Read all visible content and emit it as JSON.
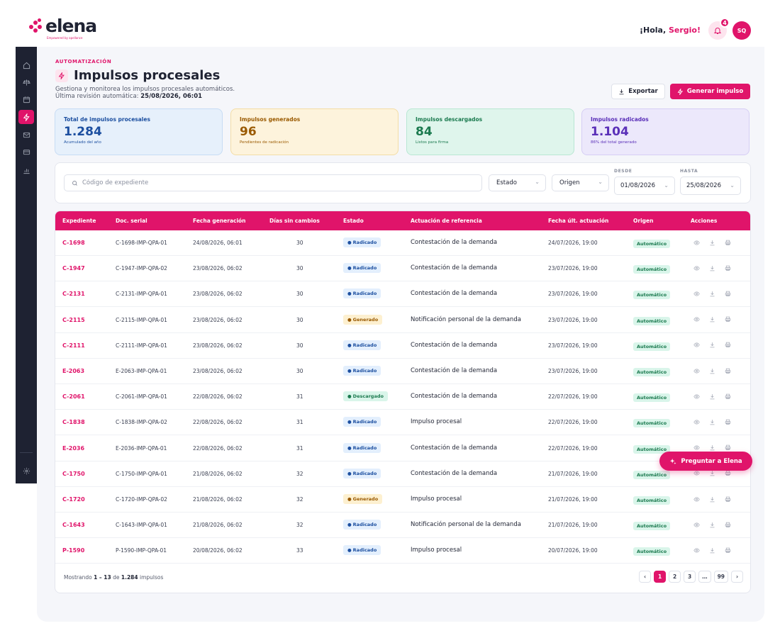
{
  "brand": {
    "name": "elena",
    "tagline": "Empowered by apellance"
  },
  "header": {
    "greeting_prefix": "¡Hola,",
    "user_name": "Sergio!",
    "notification_count": "4",
    "avatar_initials": "SQ"
  },
  "sidebar": {
    "items": [
      {
        "icon": "home-icon"
      },
      {
        "icon": "scale-icon"
      },
      {
        "icon": "calendar-icon"
      },
      {
        "icon": "bolt-icon",
        "active": true
      },
      {
        "icon": "mail-icon"
      },
      {
        "icon": "card-icon"
      },
      {
        "icon": "bar-chart-icon"
      }
    ],
    "bottom_icon": "settings-icon"
  },
  "page": {
    "section": "AUTOMATIZACIÓN",
    "title": "Impulsos procesales",
    "description": "Gestiona y monitorea los impulsos procesales automáticos.",
    "last_review_label": "Última revisión automática:",
    "last_review_value": "25/08/2026, 06:01",
    "export_label": "Exportar",
    "generate_label": "Generar impulso"
  },
  "stats": [
    {
      "label": "Total de impulsos procesales",
      "value": "1.284",
      "note": "Acumulado del año",
      "bg": "#e6f0fb",
      "border": "#c7dcf4",
      "color": "#1c4fa0"
    },
    {
      "label": "Impulsos generados",
      "value": "96",
      "note": "Pendientes de radicación",
      "bg": "#fdf3dc",
      "border": "#f3dda6",
      "color": "#9a5a00"
    },
    {
      "label": "Impulsos descargados",
      "value": "84",
      "note": "Listos para firma",
      "bg": "#dff5ec",
      "border": "#b9e7d3",
      "color": "#1b7a4f"
    },
    {
      "label": "Impulsos radicados",
      "value": "1.104",
      "note": "86% del total generado",
      "bg": "#ece8fb",
      "border": "#d6cef4",
      "color": "#5a2fb8"
    }
  ],
  "filters": {
    "search_placeholder": "Código de expediente",
    "estado_label": "Estado",
    "origen_label": "Origen",
    "desde_label": "DESDE",
    "desde_value": "01/08/2026",
    "hasta_label": "HASTA",
    "hasta_value": "25/08/2026"
  },
  "table": {
    "columns": [
      "Expediente",
      "Doc. serial",
      "Fecha generación",
      "Días sin cambios",
      "Estado",
      "Actuación de referencia",
      "Fecha últ. actuación",
      "Origen",
      "Acciones"
    ],
    "rows": [
      {
        "exp": "C-1698",
        "serial": "C-1698-IMP-QPA-01",
        "fecha": "24/08/2026, 06:01",
        "dias": "30",
        "estado": "Radicado",
        "tipo": "radicado",
        "actuacion": "Contestación de la demanda",
        "ult": "24/07/2026, 19:00",
        "origen": "Automático"
      },
      {
        "exp": "C-1947",
        "serial": "C-1947-IMP-QPA-02",
        "fecha": "23/08/2026, 06:02",
        "dias": "30",
        "estado": "Radicado",
        "tipo": "radicado",
        "actuacion": "Contestación de la demanda",
        "ult": "23/07/2026, 19:00",
        "origen": "Automático"
      },
      {
        "exp": "C-2131",
        "serial": "C-2131-IMP-QPA-01",
        "fecha": "23/08/2026, 06:02",
        "dias": "30",
        "estado": "Radicado",
        "tipo": "radicado",
        "actuacion": "Contestación de la demanda",
        "ult": "23/07/2026, 19:00",
        "origen": "Automático"
      },
      {
        "exp": "C-2115",
        "serial": "C-2115-IMP-QPA-01",
        "fecha": "23/08/2026, 06:02",
        "dias": "30",
        "estado": "Generado",
        "tipo": "generado",
        "actuacion": "Notificación personal de la demanda",
        "ult": "23/07/2026, 19:00",
        "origen": "Automático"
      },
      {
        "exp": "C-2111",
        "serial": "C-2111-IMP-QPA-01",
        "fecha": "23/08/2026, 06:02",
        "dias": "30",
        "estado": "Radicado",
        "tipo": "radicado",
        "actuacion": "Contestación de la demanda",
        "ult": "23/07/2026, 19:00",
        "origen": "Automático"
      },
      {
        "exp": "E-2063",
        "serial": "E-2063-IMP-QPA-01",
        "fecha": "23/08/2026, 06:02",
        "dias": "30",
        "estado": "Radicado",
        "tipo": "radicado",
        "actuacion": "Contestación de la demanda",
        "ult": "23/07/2026, 19:00",
        "origen": "Automático"
      },
      {
        "exp": "C-2061",
        "serial": "C-2061-IMP-QPA-01",
        "fecha": "22/08/2026, 06:02",
        "dias": "31",
        "estado": "Descargado",
        "tipo": "descargado",
        "actuacion": "Contestación de la demanda",
        "ult": "22/07/2026, 19:00",
        "origen": "Automático"
      },
      {
        "exp": "C-1838",
        "serial": "C-1838-IMP-QPA-02",
        "fecha": "22/08/2026, 06:02",
        "dias": "31",
        "estado": "Radicado",
        "tipo": "radicado",
        "actuacion": "Impulso procesal",
        "ult": "22/07/2026, 19:00",
        "origen": "Automático"
      },
      {
        "exp": "E-2036",
        "serial": "E-2036-IMP-QPA-01",
        "fecha": "22/08/2026, 06:02",
        "dias": "31",
        "estado": "Radicado",
        "tipo": "radicado",
        "actuacion": "Contestación de la demanda",
        "ult": "22/07/2026, 19:00",
        "origen": "Automático"
      },
      {
        "exp": "C-1750",
        "serial": "C-1750-IMP-QPA-01",
        "fecha": "21/08/2026, 06:02",
        "dias": "32",
        "estado": "Radicado",
        "tipo": "radicado",
        "actuacion": "Contestación de la demanda",
        "ult": "21/07/2026, 19:00",
        "origen": "Automático"
      },
      {
        "exp": "C-1720",
        "serial": "C-1720-IMP-QPA-02",
        "fecha": "21/08/2026, 06:02",
        "dias": "32",
        "estado": "Generado",
        "tipo": "generado",
        "actuacion": "Impulso procesal",
        "ult": "21/07/2026, 19:00",
        "origen": "Automático"
      },
      {
        "exp": "C-1643",
        "serial": "C-1643-IMP-QPA-01",
        "fecha": "21/08/2026, 06:02",
        "dias": "32",
        "estado": "Radicado",
        "tipo": "radicado",
        "actuacion": "Notificación personal de la demanda",
        "ult": "21/07/2026, 19:00",
        "origen": "Automático"
      },
      {
        "exp": "P-1590",
        "serial": "P-1590-IMP-QPA-01",
        "fecha": "20/08/2026, 06:02",
        "dias": "33",
        "estado": "Radicado",
        "tipo": "radicado",
        "actuacion": "Impulso procesal",
        "ult": "20/07/2026, 19:00",
        "origen": "Automático"
      }
    ],
    "action_icons": [
      "eye-icon",
      "download-icon",
      "print-icon"
    ]
  },
  "footer": {
    "showing_prefix": "Mostrando",
    "showing_range": "1 – 13",
    "showing_of": "de",
    "showing_total": "1.284",
    "showing_suffix": "impulsos",
    "pages": [
      "‹",
      "1",
      "2",
      "3",
      "…",
      "99",
      "›"
    ],
    "active_page": "1"
  },
  "assistant": {
    "label": "Preguntar a Elena"
  },
  "colors": {
    "accent": "#e0146a",
    "sidebar": "#1e2232"
  }
}
